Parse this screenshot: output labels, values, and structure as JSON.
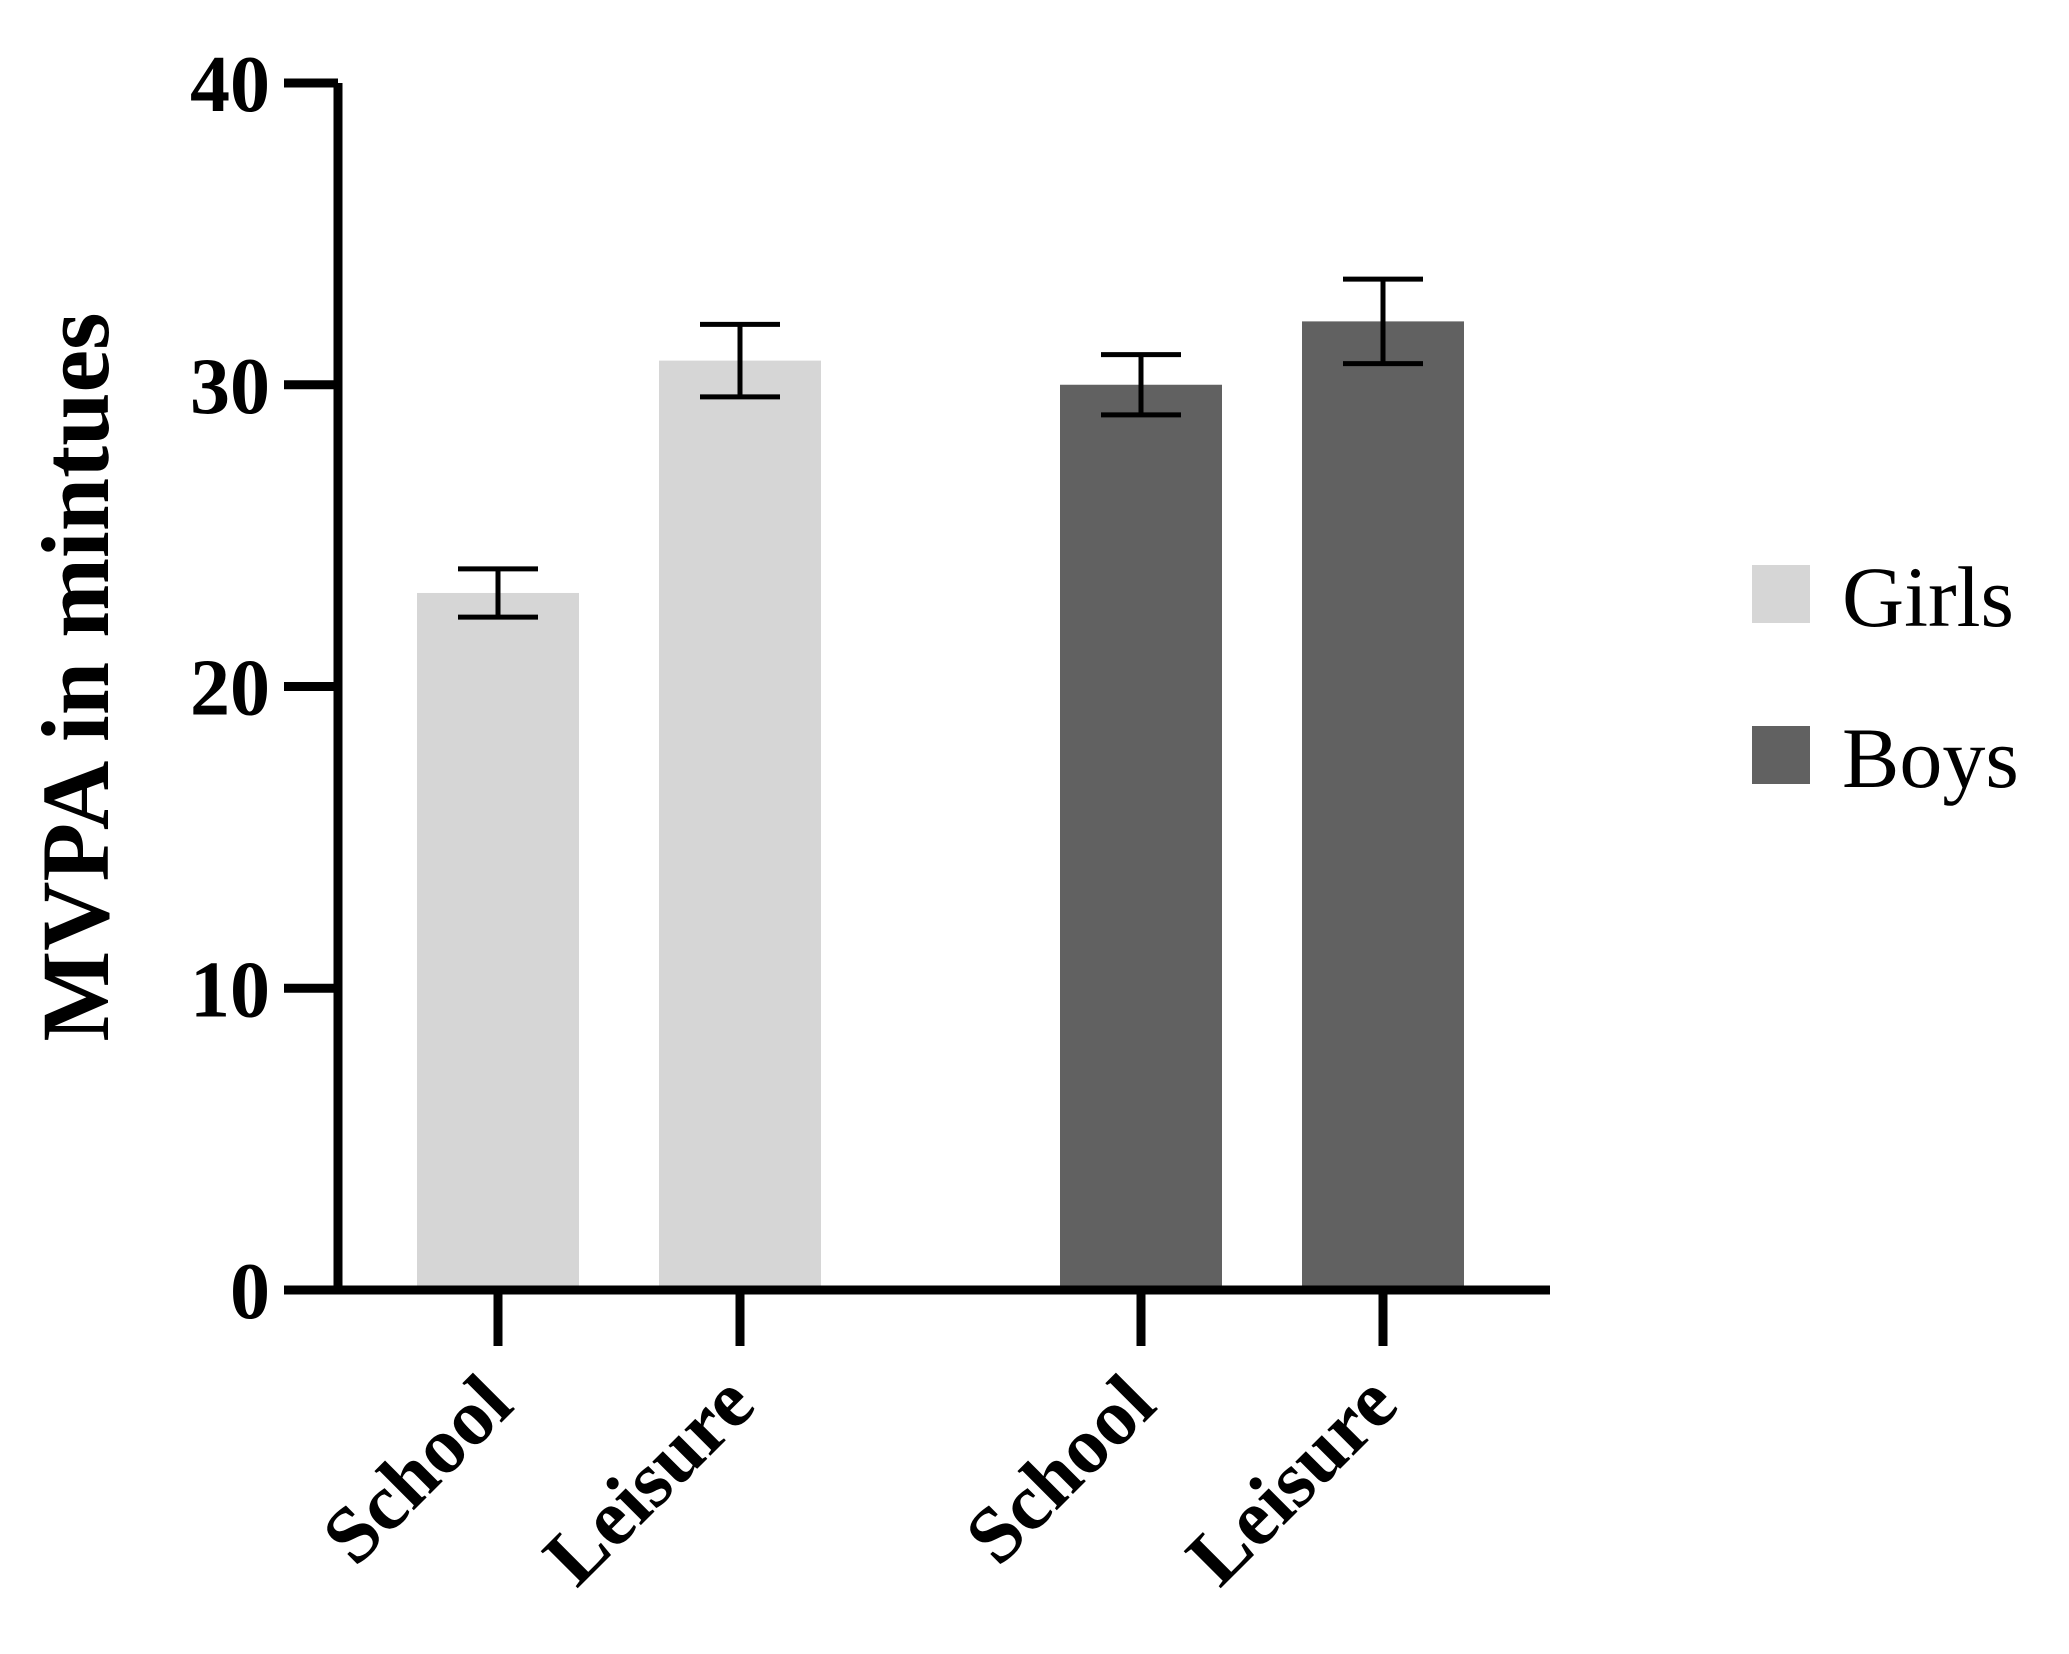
{
  "chart_data": {
    "type": "bar",
    "categories": [
      "School",
      "Leisure",
      "School",
      "Leisure"
    ],
    "series": [
      {
        "name": "Girls",
        "color": "#d6d6d6",
        "values": [
          23.1,
          30.8,
          null,
          null
        ],
        "errors": [
          0.8,
          1.2,
          null,
          null
        ]
      },
      {
        "name": "Boys",
        "color": "#616161",
        "values": [
          null,
          null,
          30.0,
          32.1
        ],
        "errors": [
          null,
          null,
          1.0,
          1.4
        ]
      }
    ],
    "title": "",
    "xlabel": "",
    "ylabel": "MVPA in mintues",
    "ylim": [
      0,
      40
    ],
    "yticks": [
      "0",
      "10",
      "20",
      "30",
      "40"
    ],
    "grid": false,
    "legend_position": "right"
  }
}
